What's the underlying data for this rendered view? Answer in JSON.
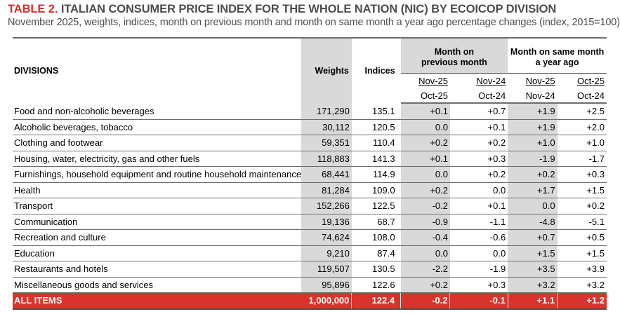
{
  "title": {
    "label": "TABLE 2.",
    "text": "ITALIAN CONSUMER PRICE INDEX FOR THE WHOLE NATION (NIC) BY ECOICOP DIVISION"
  },
  "subtitle": "November 2025, weights, indices, month on previous month and month on same month a year ago percentage changes (index, 2015=100)",
  "headers": {
    "divisions": "DIVISIONS",
    "weights": "Weights",
    "indices": "Indices",
    "mom_group_line1": "Month on",
    "mom_group_line2": "previous month",
    "yoy_group_line1": "Month on same month",
    "yoy_group_line2": "a year ago",
    "periods": [
      {
        "top": "Nov-25",
        "bottom": "Oct-25"
      },
      {
        "top": "Nov-24",
        "bottom": "Oct-24"
      },
      {
        "top": "Nov-25",
        "bottom": "Nov-24"
      },
      {
        "top": "Oct-25",
        "bottom": "Oct-24"
      }
    ]
  },
  "rows": [
    {
      "division": "Food and non-alcoholic beverages",
      "weight": "171,290",
      "index": "135.1",
      "mom_cur": "+0.1",
      "mom_prev": "+0.7",
      "yoy_cur": "+1.9",
      "yoy_prev": "+2.5"
    },
    {
      "division": "Alcoholic beverages, tobacco",
      "weight": "30,112",
      "index": "120.5",
      "mom_cur": "0.0",
      "mom_prev": "+0.1",
      "yoy_cur": "+1.9",
      "yoy_prev": "+2.0"
    },
    {
      "division": "Clothing and footwear",
      "weight": "59,351",
      "index": "110.4",
      "mom_cur": "+0.2",
      "mom_prev": "+0.2",
      "yoy_cur": "+1.0",
      "yoy_prev": "+1.0"
    },
    {
      "division": "Housing, water, electricity, gas and other fuels",
      "weight": "118,883",
      "index": "141.3",
      "mom_cur": "+0.1",
      "mom_prev": "+0.3",
      "yoy_cur": "-1.9",
      "yoy_prev": "-1.7"
    },
    {
      "division": "Furnishings, household equipment and routine household maintenance",
      "weight": "68,441",
      "index": "114.9",
      "mom_cur": "0.0",
      "mom_prev": "+0.2",
      "yoy_cur": "+0.2",
      "yoy_prev": "+0.3"
    },
    {
      "division": "Health",
      "weight": "81,284",
      "index": "109.0",
      "mom_cur": "+0.2",
      "mom_prev": "0.0",
      "yoy_cur": "+1.7",
      "yoy_prev": "+1.5"
    },
    {
      "division": "Transport",
      "weight": "152,266",
      "index": "122.5",
      "mom_cur": "-0.2",
      "mom_prev": "+0.1",
      "yoy_cur": "0.0",
      "yoy_prev": "+0.2"
    },
    {
      "division": "Communication",
      "weight": "19,136",
      "index": "68.7",
      "mom_cur": "-0.9",
      "mom_prev": "-1.1",
      "yoy_cur": "-4.8",
      "yoy_prev": "-5.1"
    },
    {
      "division": "Recreation and culture",
      "weight": "74,624",
      "index": "108.0",
      "mom_cur": "-0.4",
      "mom_prev": "-0.6",
      "yoy_cur": "+0.7",
      "yoy_prev": "+0.5"
    },
    {
      "division": "Education",
      "weight": "9,210",
      "index": "87.4",
      "mom_cur": "0.0",
      "mom_prev": "0.0",
      "yoy_cur": "+1.5",
      "yoy_prev": "+1.5"
    },
    {
      "division": "Restaurants and hotels",
      "weight": "119,507",
      "index": "130.5",
      "mom_cur": "-2.2",
      "mom_prev": "-1.9",
      "yoy_cur": "+3.5",
      "yoy_prev": "+3.9"
    },
    {
      "division": "Miscellaneous goods and services",
      "weight": "95,896",
      "index": "122.6",
      "mom_cur": "+0.2",
      "mom_prev": "+0.3",
      "yoy_cur": "+3.2",
      "yoy_prev": "+3.2"
    }
  ],
  "total": {
    "division": "ALL ITEMS",
    "weight": "1,000,000",
    "index": "122.4",
    "mom_cur": "-0.2",
    "mom_prev": "-0.1",
    "yoy_cur": "+1.1",
    "yoy_prev": "+1.2"
  },
  "colors": {
    "accent_red": "#d9342b",
    "title_red": "#d7302a",
    "shade_gray": "#d9d9d9",
    "text_gray": "#4d4d4d"
  }
}
